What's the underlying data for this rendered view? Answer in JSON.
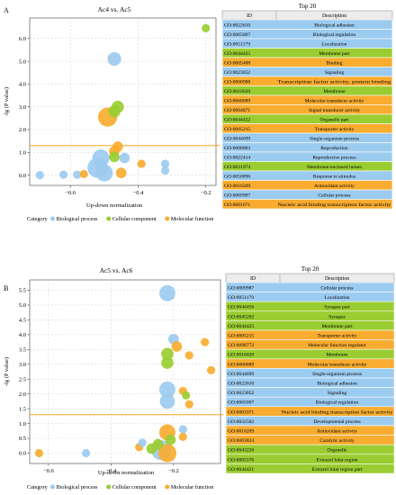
{
  "colors": {
    "biological": "#9ccbf0",
    "cellular": "#9acd32",
    "molecular": "#f8ac30",
    "threshold": "#f5a623",
    "table_border": "#8a8a8a",
    "table_header": "#ececec"
  },
  "chart_data": [
    {
      "panel_label": "A",
      "type": "scatter",
      "title": "Ac4 vs. Ac5",
      "xlabel": "Up-down  normalization",
      "ylabel": "-lg (P value)",
      "xlim": [
        -0.72,
        -0.17
      ],
      "ylim": [
        -0.45,
        6.9
      ],
      "xticks": [
        -0.6,
        -0.4,
        -0.2
      ],
      "xtick_labels": [
        "−0.6",
        "−0.4",
        "−0.2"
      ],
      "yticks": [
        0,
        1,
        2,
        3,
        4,
        5,
        6
      ],
      "ytick_labels": [
        "0.0",
        "1.0",
        "2.0",
        "3.0",
        "4.0",
        "5.0",
        "6.0"
      ],
      "threshold_y": 1.3,
      "grid": true,
      "legend_placement": "bottom",
      "legend": {
        "title": "Category",
        "entries": [
          {
            "label": "Biological process",
            "color": "#9ccbf0"
          },
          {
            "label": "Cellular  component",
            "color": "#9acd32"
          },
          {
            "label": "Molecular function",
            "color": "#f8ac30"
          }
        ]
      },
      "points": [
        {
          "x": -0.47,
          "y": 5.1,
          "size": 4,
          "category": "biological"
        },
        {
          "x": -0.2,
          "y": 6.45,
          "size": 1,
          "category": "cellular"
        },
        {
          "x": -0.46,
          "y": 3.0,
          "size": 3,
          "category": "cellular"
        },
        {
          "x": -0.47,
          "y": 2.8,
          "size": 3,
          "category": "cellular"
        },
        {
          "x": -0.49,
          "y": 2.55,
          "size": 9,
          "category": "molecular"
        },
        {
          "x": -0.46,
          "y": 1.25,
          "size": 2,
          "category": "molecular"
        },
        {
          "x": -0.47,
          "y": 1.05,
          "size": 2,
          "category": "molecular"
        },
        {
          "x": -0.47,
          "y": 0.8,
          "size": 2,
          "category": "cellular"
        },
        {
          "x": -0.44,
          "y": 0.75,
          "size": 2,
          "category": "biological"
        },
        {
          "x": -0.51,
          "y": 0.75,
          "size": 7,
          "category": "biological"
        },
        {
          "x": -0.52,
          "y": 0.32,
          "size": 10,
          "category": "biological"
        },
        {
          "x": -0.5,
          "y": 0.1,
          "size": 7,
          "category": "biological"
        },
        {
          "x": -0.45,
          "y": 0.1,
          "size": 2,
          "category": "molecular"
        },
        {
          "x": -0.39,
          "y": 0.5,
          "size": 1,
          "category": "molecular"
        },
        {
          "x": -0.32,
          "y": 0.5,
          "size": 1,
          "category": "biological"
        },
        {
          "x": -0.32,
          "y": 0.2,
          "size": 1,
          "category": "biological"
        },
        {
          "x": -0.62,
          "y": 0.02,
          "size": 1,
          "category": "biological"
        },
        {
          "x": -0.58,
          "y": 0.02,
          "size": 1,
          "category": "biological"
        },
        {
          "x": -0.69,
          "y": 0.0,
          "size": 1,
          "category": "biological"
        },
        {
          "x": -0.56,
          "y": 0.05,
          "size": 1,
          "category": "molecular"
        }
      ],
      "table": {
        "title": "Top  20",
        "headers": [
          "ID",
          "Description"
        ],
        "rows": [
          {
            "id": "GO:0022610",
            "description": "Biological  adhesion",
            "category": "biological"
          },
          {
            "id": "GO:0065007",
            "description": "Biological  regulation",
            "category": "biological"
          },
          {
            "id": "GO:0051179",
            "description": "Localization",
            "category": "biological"
          },
          {
            "id": "GO:0044425",
            "description": "Membrane  part",
            "category": "cellular"
          },
          {
            "id": "GO:0005488",
            "description": "Binding",
            "category": "molecular"
          },
          {
            "id": "GO:0023052",
            "description": "Signaling",
            "category": "biological"
          },
          {
            "id": "GO:0000988",
            "description": "Transcription  factor  activity, protein  binding",
            "category": "molecular"
          },
          {
            "id": "GO:0016020",
            "description": "Membrane",
            "category": "cellular"
          },
          {
            "id": "GO:0060089",
            "description": "Molecular  transducer  activity",
            "category": "molecular"
          },
          {
            "id": "GO:0004871",
            "description": "Signal  transducer  activity",
            "category": "molecular"
          },
          {
            "id": "GO:0044422",
            "description": "Organelle  part",
            "category": "cellular"
          },
          {
            "id": "GO:0005215",
            "description": "Transporter  activity",
            "category": "molecular"
          },
          {
            "id": "GO:0044699",
            "description": "Single-organism  process",
            "category": "biological"
          },
          {
            "id": "GO:0000003",
            "description": "Reproduction",
            "category": "biological"
          },
          {
            "id": "GO:0022414",
            "description": "Reproductive  process",
            "category": "biological"
          },
          {
            "id": "GO:0031974",
            "description": "Membrane-enclosed  lumen",
            "category": "cellular"
          },
          {
            "id": "GO:0050896",
            "description": "Response  to  stimulus",
            "category": "biological"
          },
          {
            "id": "GO:0016209",
            "description": "Antioxidant  activity",
            "category": "molecular"
          },
          {
            "id": "GO:0009987",
            "description": "Cellular  process",
            "category": "biological"
          },
          {
            "id": "GO:0001071",
            "description": "Nucleic  acid  binding  transcription  factor  activity",
            "category": "molecular"
          }
        ]
      }
    },
    {
      "panel_label": "B",
      "type": "scatter",
      "title": "Ac5 vs. Ac6",
      "xlabel": "Up-down   normalization",
      "ylabel": "-lg (P value)",
      "xlim": [
        -0.66,
        -0.05
      ],
      "ylim": [
        -0.35,
        5.85
      ],
      "xticks": [
        -0.6,
        -0.4,
        -0.2
      ],
      "xtick_labels": [
        "−0.6",
        "−0.4",
        "−0.2"
      ],
      "yticks": [
        0,
        0.5,
        1,
        1.5,
        2,
        2.5,
        3,
        3.5,
        4,
        4.5,
        5,
        5.5
      ],
      "ytick_labels": [
        "0.0",
        "0.5",
        "1.0",
        "1.5",
        "2.0",
        "2.5",
        "3.0",
        "3.5",
        "4.0",
        "4.5",
        "5.0",
        "5.5"
      ],
      "threshold_y": 1.3,
      "grid": true,
      "legend_placement": "bottom",
      "legend": {
        "title": "Category",
        "entries": [
          {
            "label": "Biological process",
            "color": "#9ccbf0"
          },
          {
            "label": "Cellular  component",
            "color": "#9acd32"
          },
          {
            "label": "Molecular  function",
            "color": "#f8ac30"
          }
        ]
      },
      "points": [
        {
          "x": -0.22,
          "y": 5.4,
          "size": 6,
          "category": "biological"
        },
        {
          "x": -0.2,
          "y": 3.85,
          "size": 2,
          "category": "biological"
        },
        {
          "x": -0.19,
          "y": 3.6,
          "size": 2,
          "category": "molecular"
        },
        {
          "x": -0.22,
          "y": 3.35,
          "size": 3,
          "category": "cellular"
        },
        {
          "x": -0.22,
          "y": 3.05,
          "size": 3,
          "category": "cellular"
        },
        {
          "x": -0.15,
          "y": 3.3,
          "size": 1,
          "category": "molecular"
        },
        {
          "x": -0.1,
          "y": 3.75,
          "size": 1,
          "category": "molecular"
        },
        {
          "x": -0.22,
          "y": 2.15,
          "size": 6,
          "category": "biological"
        },
        {
          "x": -0.22,
          "y": 1.75,
          "size": 5,
          "category": "biological"
        },
        {
          "x": -0.17,
          "y": 2.1,
          "size": 1,
          "category": "molecular"
        },
        {
          "x": -0.16,
          "y": 1.95,
          "size": 1,
          "category": "cellular"
        },
        {
          "x": -0.15,
          "y": 1.65,
          "size": 1,
          "category": "molecular"
        },
        {
          "x": -0.08,
          "y": 2.8,
          "size": 1,
          "category": "molecular"
        },
        {
          "x": -0.22,
          "y": 0.7,
          "size": 6,
          "category": "molecular"
        },
        {
          "x": -0.21,
          "y": 0.45,
          "size": 2,
          "category": "cellular"
        },
        {
          "x": -0.17,
          "y": 0.8,
          "size": 1,
          "category": "biological"
        },
        {
          "x": -0.17,
          "y": 0.55,
          "size": 1,
          "category": "molecular"
        },
        {
          "x": -0.24,
          "y": 0.1,
          "size": 10,
          "category": "biological"
        },
        {
          "x": -0.22,
          "y": 0.0,
          "size": 8,
          "category": "molecular"
        },
        {
          "x": -0.31,
          "y": 0.2,
          "size": 1,
          "category": "molecular"
        },
        {
          "x": -0.3,
          "y": 0.35,
          "size": 1,
          "category": "biological"
        },
        {
          "x": -0.27,
          "y": 0.15,
          "size": 2,
          "category": "cellular"
        },
        {
          "x": -0.25,
          "y": 0.3,
          "size": 2,
          "category": "cellular"
        },
        {
          "x": -0.48,
          "y": 0.0,
          "size": 1,
          "category": "biological"
        },
        {
          "x": -0.63,
          "y": 0.0,
          "size": 1,
          "category": "molecular"
        }
      ],
      "table": {
        "title": "Top  20",
        "headers": [
          "ID",
          "Description"
        ],
        "rows": [
          {
            "id": "GO:0009987",
            "description": "Cellular  process",
            "category": "biological"
          },
          {
            "id": "GO:0051179",
            "description": "Localization",
            "category": "biological"
          },
          {
            "id": "GO:0044456",
            "description": "Synapse  part",
            "category": "cellular"
          },
          {
            "id": "GO:0045202",
            "description": "Synapse",
            "category": "cellular"
          },
          {
            "id": "GO:0044425",
            "description": "Membrane  part",
            "category": "cellular"
          },
          {
            "id": "GO:0005215",
            "description": "Transporter  activity",
            "category": "molecular"
          },
          {
            "id": "GO:0098772",
            "description": "Molecular  function  regulator",
            "category": "molecular"
          },
          {
            "id": "GO:0016020",
            "description": "Membrane",
            "category": "cellular"
          },
          {
            "id": "GO:0060089",
            "description": "Molecular  transducer  activity",
            "category": "molecular"
          },
          {
            "id": "GO:0044699",
            "description": "Single-organism  process",
            "category": "biological"
          },
          {
            "id": "GO:0022610",
            "description": "Biological  adhesion",
            "category": "biological"
          },
          {
            "id": "GO:0023052",
            "description": "Signaling",
            "category": "biological"
          },
          {
            "id": "GO:0065007",
            "description": "Biological  regulation",
            "category": "biological"
          },
          {
            "id": "GO:0001071",
            "description": "Nucleic  acid  binding  transcription  factor  activity",
            "category": "molecular"
          },
          {
            "id": "GO:0032502",
            "description": "Developmental  process",
            "category": "biological"
          },
          {
            "id": "GO:0016209",
            "description": "Antioxidant  activity",
            "category": "molecular"
          },
          {
            "id": "GO:0003824",
            "description": "Catalytic  activity",
            "category": "molecular"
          },
          {
            "id": "GO:0043226",
            "description": "Organelle",
            "category": "cellular"
          },
          {
            "id": "GO:0005576",
            "description": "Extracel lular  region",
            "category": "cellular"
          },
          {
            "id": "GO:0044421",
            "description": "Extracel lular  region  part",
            "category": "cellular"
          }
        ]
      }
    }
  ]
}
